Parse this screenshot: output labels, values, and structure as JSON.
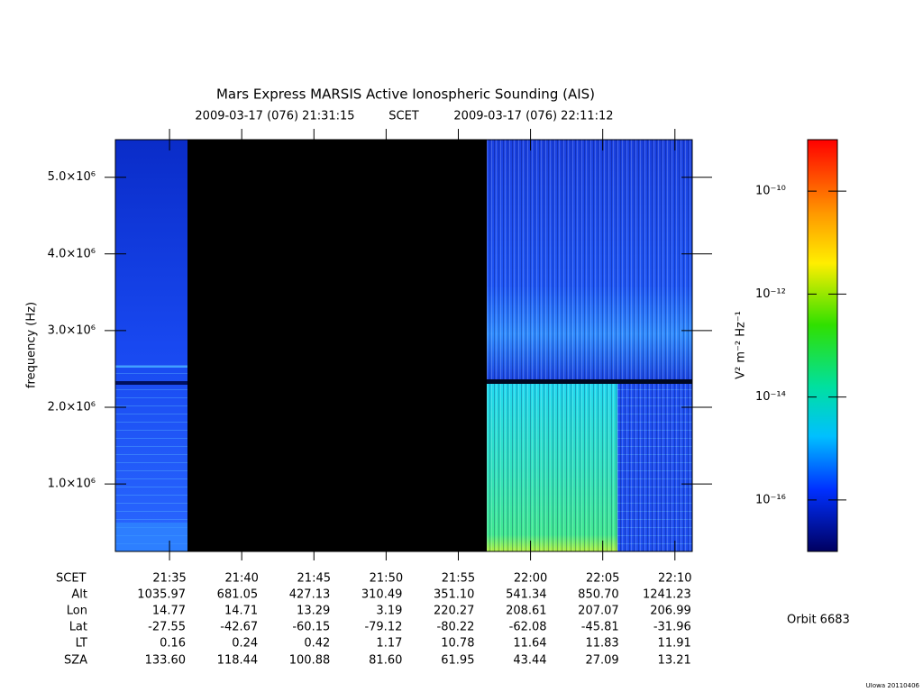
{
  "chart_data": {
    "type": "spectrogram",
    "title": "Mars Express MARSIS Active Ionospheric Sounding (AIS)",
    "time_start": "2009-03-17 (076) 21:31:15",
    "time_label": "SCET",
    "time_end": "2009-03-17 (076) 22:11:12",
    "ylabel": "frequency (Hz)",
    "ylim": [
      120000,
      5490000
    ],
    "yticks": [
      {
        "value": 1000000,
        "label": "1.0×10⁶"
      },
      {
        "value": 2000000,
        "label": "2.0×10⁶"
      },
      {
        "value": 3000000,
        "label": "3.0×10⁶"
      },
      {
        "value": 4000000,
        "label": "4.0×10⁶"
      },
      {
        "value": 5000000,
        "label": "5.0×10⁶"
      }
    ],
    "xlim": [
      "21:31:15",
      "22:11:12"
    ],
    "xticks": [
      "21:35",
      "21:40",
      "21:45",
      "21:50",
      "21:55",
      "22:00",
      "22:05",
      "22:10"
    ],
    "colorbar": {
      "label": "V² m⁻² Hz⁻¹",
      "log": true,
      "lim": [
        1e-17,
        1e-09
      ],
      "ticks": [
        {
          "value": 1e-10,
          "label": "10⁻¹⁰"
        },
        {
          "value": 1e-12,
          "label": "10⁻¹²"
        },
        {
          "value": 1e-14,
          "label": "10⁻¹⁴"
        },
        {
          "value": 1e-16,
          "label": "10⁻¹⁶"
        }
      ]
    },
    "ephemeris": {
      "labels": [
        "SCET",
        "Alt",
        "Lon",
        "Lat",
        "LT",
        "SZA"
      ],
      "rows": [
        [
          "1035.97",
          "681.05",
          "427.13",
          "310.49",
          "351.10",
          "541.34",
          "850.70",
          "1241.23"
        ],
        [
          "14.77",
          "14.71",
          "13.29",
          "3.19",
          "220.27",
          "208.61",
          "207.07",
          "206.99"
        ],
        [
          "-27.55",
          "-42.67",
          "-60.15",
          "-79.12",
          "-80.22",
          "-62.08",
          "-45.81",
          "-31.96"
        ],
        [
          "0.16",
          "0.24",
          "0.42",
          "1.17",
          "10.78",
          "11.64",
          "11.83",
          "11.91"
        ],
        [
          "133.60",
          "118.44",
          "100.88",
          "81.60",
          "61.95",
          "43.44",
          "27.09",
          "13.21"
        ]
      ]
    },
    "orbit": "Orbit 6683",
    "version": "UIowa 20110406"
  }
}
